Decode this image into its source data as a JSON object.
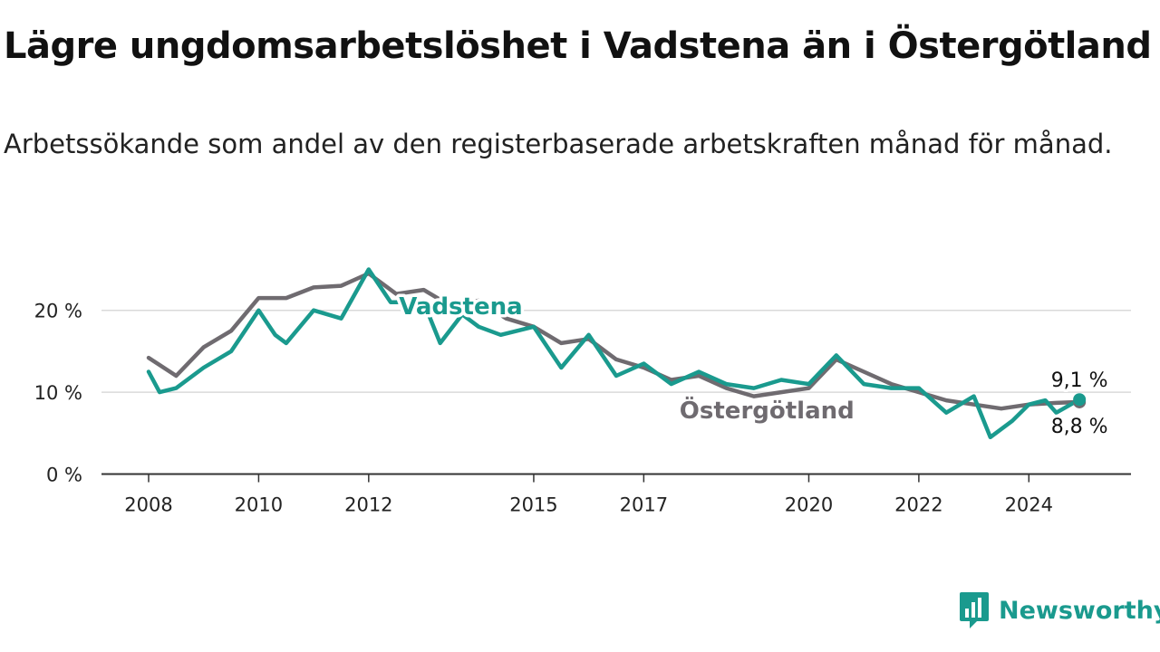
{
  "title": "Lägre ungdomsarbetslöshet i Vadstena än i Östergötland",
  "subtitle": "Arbetssökande som andel av den registerbaserade arbetskraften månad för månad.",
  "brand": {
    "name": "Newsworthy",
    "icon": "newsworthy-logo-icon",
    "color": "#1a9a8e"
  },
  "chart_data": {
    "type": "line",
    "x_unit": "year",
    "xlim": [
      2008,
      2025
    ],
    "ylim": [
      0,
      25
    ],
    "yticks": [
      0,
      10,
      20
    ],
    "ytick_labels": [
      "0 %",
      "10 %",
      "20 %"
    ],
    "xticks": [
      2008,
      2010,
      2012,
      2015,
      2017,
      2020,
      2022,
      2024
    ],
    "xtick_labels": [
      "2008",
      "2010",
      "2012",
      "2015",
      "2017",
      "2020",
      "2022",
      "2024"
    ],
    "grid": "horizontal",
    "legend": "inline labels",
    "series": [
      {
        "name": "Östergötland",
        "color": "#6f6b70",
        "end_label": "8,8 %",
        "values": [
          [
            2008.0,
            14.2
          ],
          [
            2008.5,
            12.0
          ],
          [
            2009.0,
            15.5
          ],
          [
            2009.5,
            17.5
          ],
          [
            2010.0,
            21.5
          ],
          [
            2010.5,
            21.5
          ],
          [
            2011.0,
            22.8
          ],
          [
            2011.5,
            23.0
          ],
          [
            2012.0,
            24.5
          ],
          [
            2012.5,
            22.0
          ],
          [
            2013.0,
            22.5
          ],
          [
            2013.5,
            20.5
          ],
          [
            2014.0,
            21.2
          ],
          [
            2014.5,
            19.0
          ],
          [
            2015.0,
            18.0
          ],
          [
            2015.5,
            16.0
          ],
          [
            2016.0,
            16.5
          ],
          [
            2016.5,
            14.0
          ],
          [
            2017.0,
            13.0
          ],
          [
            2017.5,
            11.5
          ],
          [
            2018.0,
            12.0
          ],
          [
            2018.5,
            10.5
          ],
          [
            2019.0,
            9.5
          ],
          [
            2019.5,
            10.0
          ],
          [
            2020.0,
            10.5
          ],
          [
            2020.5,
            14.0
          ],
          [
            2021.0,
            12.5
          ],
          [
            2021.5,
            11.0
          ],
          [
            2022.0,
            10.0
          ],
          [
            2022.5,
            9.0
          ],
          [
            2023.0,
            8.5
          ],
          [
            2023.5,
            8.0
          ],
          [
            2024.0,
            8.5
          ],
          [
            2024.5,
            8.7
          ],
          [
            2024.92,
            8.8
          ]
        ]
      },
      {
        "name": "Vadstena",
        "color": "#1a9a8e",
        "end_label": "9,1 %",
        "values": [
          [
            2008.0,
            12.5
          ],
          [
            2008.2,
            10.0
          ],
          [
            2008.5,
            10.5
          ],
          [
            2009.0,
            13.0
          ],
          [
            2009.5,
            15.0
          ],
          [
            2010.0,
            20.0
          ],
          [
            2010.3,
            17.0
          ],
          [
            2010.5,
            16.0
          ],
          [
            2011.0,
            20.0
          ],
          [
            2011.5,
            19.0
          ],
          [
            2012.0,
            25.0
          ],
          [
            2012.4,
            21.0
          ],
          [
            2013.0,
            21.0
          ],
          [
            2013.3,
            16.0
          ],
          [
            2013.7,
            19.5
          ],
          [
            2014.0,
            18.0
          ],
          [
            2014.4,
            17.0
          ],
          [
            2015.0,
            18.0
          ],
          [
            2015.5,
            13.0
          ],
          [
            2016.0,
            17.0
          ],
          [
            2016.5,
            12.0
          ],
          [
            2017.0,
            13.5
          ],
          [
            2017.5,
            11.0
          ],
          [
            2018.0,
            12.5
          ],
          [
            2018.5,
            11.0
          ],
          [
            2019.0,
            10.5
          ],
          [
            2019.5,
            11.5
          ],
          [
            2020.0,
            11.0
          ],
          [
            2020.5,
            14.5
          ],
          [
            2021.0,
            11.0
          ],
          [
            2021.5,
            10.5
          ],
          [
            2022.0,
            10.5
          ],
          [
            2022.5,
            7.5
          ],
          [
            2023.0,
            9.5
          ],
          [
            2023.3,
            4.5
          ],
          [
            2023.7,
            6.5
          ],
          [
            2024.0,
            8.5
          ],
          [
            2024.3,
            9.0
          ],
          [
            2024.5,
            7.5
          ],
          [
            2024.92,
            9.1
          ]
        ]
      }
    ]
  }
}
